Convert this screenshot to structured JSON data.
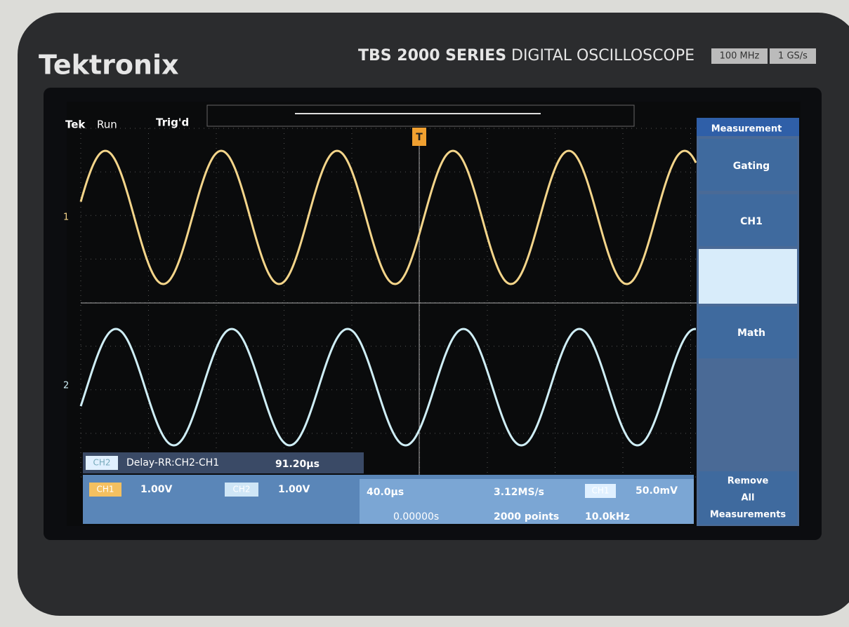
{
  "bezel": {
    "brand": "Tektronix",
    "series": "TBS 2000 SERIES",
    "product": "DIGITAL OSCILLOSCOPE",
    "badges": [
      "100 MHz",
      "1 GS/s"
    ]
  },
  "status": {
    "logo": "Tek",
    "state": "Run",
    "trigger": "Trig'd"
  },
  "menu": {
    "title": "Measurement",
    "items": [
      "Gating",
      "CH1",
      "Math"
    ],
    "remove": [
      "Remove",
      "All",
      "Measurements"
    ]
  },
  "measurement": {
    "source": "CH2",
    "name": "Delay-RR:CH2-CH1",
    "value": "91.20µs"
  },
  "channels": [
    {
      "name": "CH1",
      "scale": "1.00V"
    },
    {
      "name": "CH2",
      "scale": "1.00V"
    }
  ],
  "timebase": {
    "scale": "40.0µs",
    "position": "0.00000s",
    "rate": "3.12MS/s",
    "length": "2000 points"
  },
  "trigger": {
    "source": "CH1",
    "level": "50.0mV",
    "frequency": "10.0kHz"
  },
  "markers": {
    "ch1": "1",
    "ch2": "2",
    "trigger": "T"
  }
}
